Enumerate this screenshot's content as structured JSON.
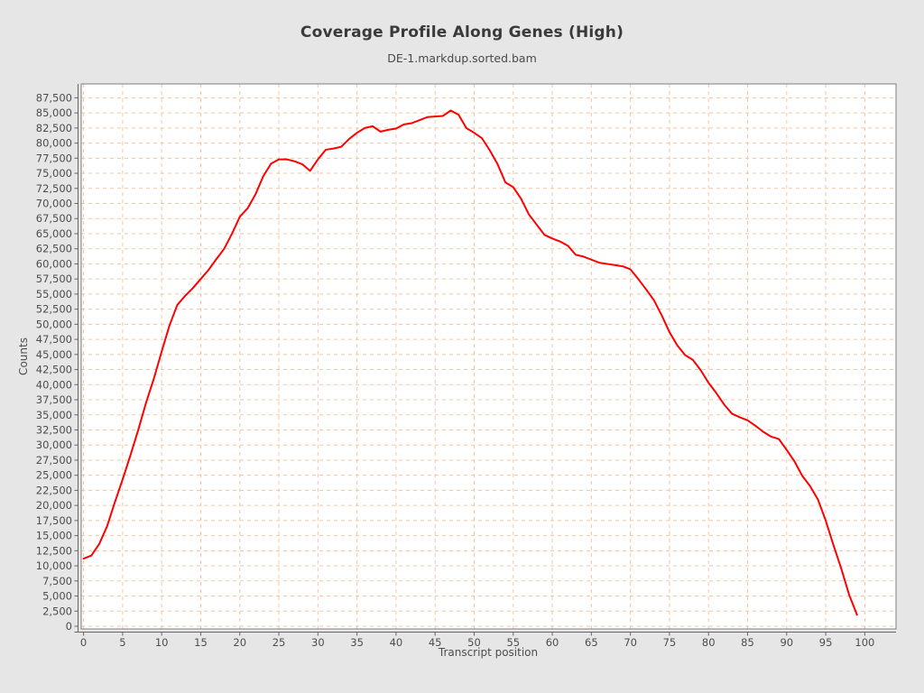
{
  "header": {
    "title": "Coverage Profile Along Genes (High)",
    "subtitle": "DE-1.markdup.sorted.bam"
  },
  "colors": {
    "panel_background": "#e6e6e6",
    "plot_background": "#ffffff",
    "plot_border": "#7f7f7f",
    "axis_line": "#666666",
    "gridline": "#f5c6a0",
    "series_line": "#ff0000",
    "text": "#4d4d4d"
  },
  "chart_data": {
    "type": "line",
    "title": "Coverage Profile Along Genes (High)",
    "subtitle": "DE-1.markdup.sorted.bam",
    "xlabel": "Transcript position",
    "ylabel": "Counts",
    "xlim": [
      -0.3,
      104
    ],
    "ylim": [
      -450,
      89800
    ],
    "grid": "dashed-orange",
    "legend": "none",
    "x_ticks": [
      0,
      5,
      10,
      15,
      20,
      25,
      30,
      35,
      40,
      45,
      50,
      55,
      60,
      65,
      70,
      75,
      80,
      85,
      90,
      95,
      100
    ],
    "y_ticks": [
      0,
      2500,
      5000,
      7500,
      10000,
      12500,
      15000,
      17500,
      20000,
      22500,
      25000,
      27500,
      30000,
      32500,
      35000,
      37500,
      40000,
      42500,
      45000,
      47500,
      50000,
      52500,
      55000,
      57500,
      60000,
      62500,
      65000,
      67500,
      70000,
      72500,
      75000,
      77500,
      80000,
      82500,
      85000,
      87500
    ],
    "series": [
      {
        "name": "DE-1.markdup.sorted.bam",
        "color": "#ff0000",
        "x_start": 0,
        "x_step": 1,
        "values": [
          11200,
          11700,
          13600,
          16500,
          20500,
          24300,
          28300,
          32500,
          37000,
          41000,
          45500,
          49800,
          53200,
          54700,
          56000,
          57500,
          59000,
          60800,
          62500,
          65000,
          67800,
          69200,
          71500,
          74500,
          76600,
          77300,
          77300,
          77000,
          76500,
          75400,
          77300,
          78900,
          79100,
          79400,
          80700,
          81700,
          82500,
          82800,
          81900,
          82200,
          82400,
          83100,
          83300,
          83800,
          84300,
          84400,
          84500,
          85400,
          84700,
          82500,
          81700,
          80800,
          78800,
          76500,
          73500,
          72700,
          70800,
          68200,
          66500,
          64800,
          64200,
          63700,
          63000,
          61500,
          61200,
          60700,
          60200,
          60000,
          59800,
          59600,
          59100,
          57500,
          55800,
          54000,
          51500,
          48700,
          46500,
          44900,
          44100,
          42400,
          40300,
          38600,
          36700,
          35200,
          34600,
          34100,
          33200,
          32200,
          31400,
          31000,
          29200,
          27300,
          24900,
          23200,
          21000,
          17500,
          13400,
          9500,
          5200,
          1900
        ]
      }
    ]
  }
}
